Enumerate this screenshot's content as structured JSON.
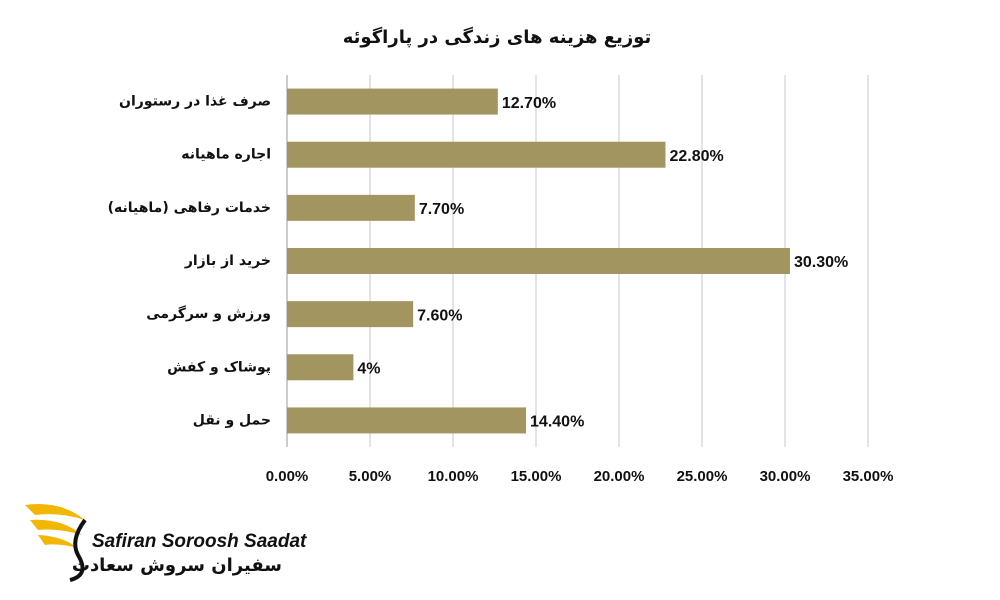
{
  "chart_data": {
    "type": "hbar",
    "title": "توزیع هزینه های زندگی در پاراگوئه",
    "categories": [
      "صرف غذا در رستوران",
      "اجاره ماهیانه",
      "خدمات رفاهی (ماهیانه)",
      "خرید از بازار",
      "ورزش و سرگرمی",
      "پوشاک و کفش",
      "حمل و نقل"
    ],
    "values": [
      12.7,
      22.8,
      7.7,
      30.3,
      7.6,
      4,
      14.4
    ],
    "value_labels": [
      "12.70%",
      "22.80%",
      "7.70%",
      "30.30%",
      "7.60%",
      "4%",
      "14.40%"
    ],
    "color": "#a39560",
    "xlim": [
      0,
      35
    ],
    "xticks": [
      {
        "value": 0,
        "label": "0.00%"
      },
      {
        "value": 5,
        "label": "5.00%"
      },
      {
        "value": 10,
        "label": "10.00%"
      },
      {
        "value": 15,
        "label": "15.00%"
      },
      {
        "value": 20,
        "label": "20.00%"
      },
      {
        "value": 25,
        "label": "25.00%"
      },
      {
        "value": 30,
        "label": "30.00%"
      },
      {
        "value": 35,
        "label": "35.00%"
      }
    ],
    "grid": true
  },
  "logo": {
    "text_en": "Safiran Soroosh Saadat",
    "text_fa": "سفیران سروش سعادت"
  }
}
